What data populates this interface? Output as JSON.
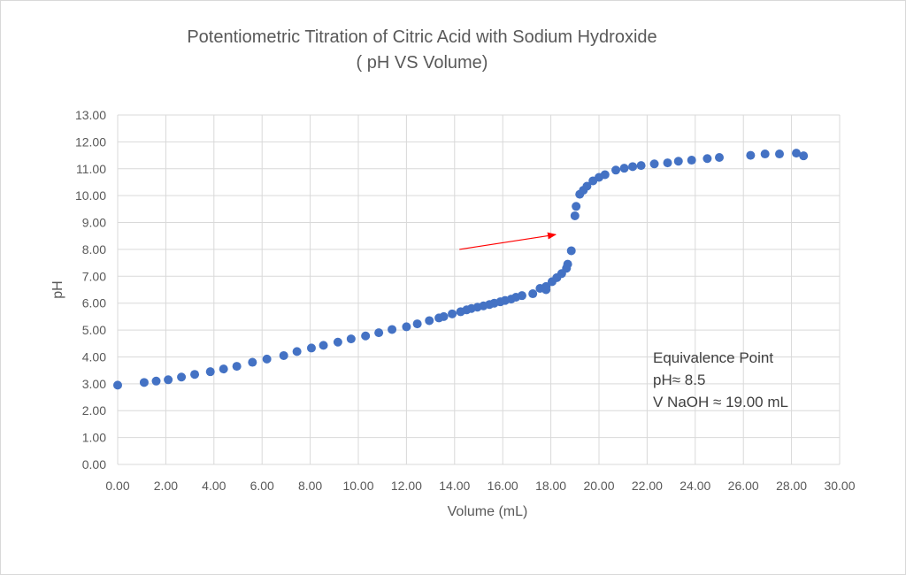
{
  "chart_data": {
    "type": "scatter",
    "title": "Potentiometric Titration of Citric Acid with Sodium Hydroxide",
    "subtitle": "( pH VS Volume)",
    "xlabel": "Volume (mL)",
    "ylabel": "pH",
    "xlim": [
      0,
      30
    ],
    "ylim": [
      0,
      13
    ],
    "grid": true,
    "x_ticks": [
      "0.00",
      "2.00",
      "4.00",
      "6.00",
      "8.00",
      "10.00",
      "12.00",
      "14.00",
      "16.00",
      "18.00",
      "20.00",
      "22.00",
      "24.00",
      "26.00",
      "28.00",
      "30.00"
    ],
    "y_ticks": [
      "0.00",
      "1.00",
      "2.00",
      "3.00",
      "4.00",
      "5.00",
      "6.00",
      "7.00",
      "8.00",
      "9.00",
      "10.00",
      "11.00",
      "12.00",
      "13.00"
    ],
    "marker_color": "#4472c4",
    "arrow_color": "#ff0000",
    "x": [
      0.0,
      1.1,
      1.6,
      2.1,
      2.65,
      3.2,
      3.85,
      4.4,
      4.95,
      5.6,
      6.2,
      6.9,
      7.45,
      8.05,
      8.55,
      9.15,
      9.7,
      10.3,
      10.85,
      11.4,
      12.0,
      12.45,
      12.95,
      13.35,
      13.55,
      13.9,
      14.25,
      14.5,
      14.7,
      14.95,
      15.2,
      15.45,
      15.65,
      15.9,
      16.1,
      16.35,
      16.55,
      16.8,
      17.25,
      17.55,
      17.8,
      17.8,
      18.05,
      18.25,
      18.45,
      18.65,
      18.7,
      18.85,
      19.0,
      19.05,
      19.2,
      19.35,
      19.5,
      19.75,
      20.0,
      20.25,
      20.7,
      21.05,
      21.4,
      21.75,
      22.3,
      22.85,
      23.3,
      23.85,
      24.5,
      25.0,
      26.3,
      26.9,
      27.5,
      28.2,
      28.5
    ],
    "y": [
      2.95,
      3.05,
      3.1,
      3.15,
      3.25,
      3.35,
      3.45,
      3.55,
      3.65,
      3.8,
      3.92,
      4.05,
      4.2,
      4.33,
      4.43,
      4.55,
      4.67,
      4.78,
      4.9,
      5.02,
      5.12,
      5.23,
      5.35,
      5.45,
      5.5,
      5.6,
      5.68,
      5.75,
      5.8,
      5.85,
      5.9,
      5.95,
      6.0,
      6.05,
      6.1,
      6.15,
      6.22,
      6.28,
      6.35,
      6.55,
      6.62,
      6.5,
      6.8,
      6.95,
      7.1,
      7.3,
      7.45,
      7.95,
      9.25,
      9.6,
      10.05,
      10.2,
      10.35,
      10.55,
      10.68,
      10.78,
      10.95,
      11.02,
      11.08,
      11.12,
      11.18,
      11.22,
      11.28,
      11.32,
      11.38,
      11.42,
      11.5,
      11.55,
      11.55,
      11.58,
      11.48
    ],
    "annotation": {
      "lines": [
        "Equivalence Point",
        "pH≈ 8.5",
        "V NaOH ≈ 19.00 mL"
      ],
      "arrow_from": [
        14.2,
        8.0
      ],
      "arrow_to": [
        18.2,
        8.55
      ]
    }
  }
}
